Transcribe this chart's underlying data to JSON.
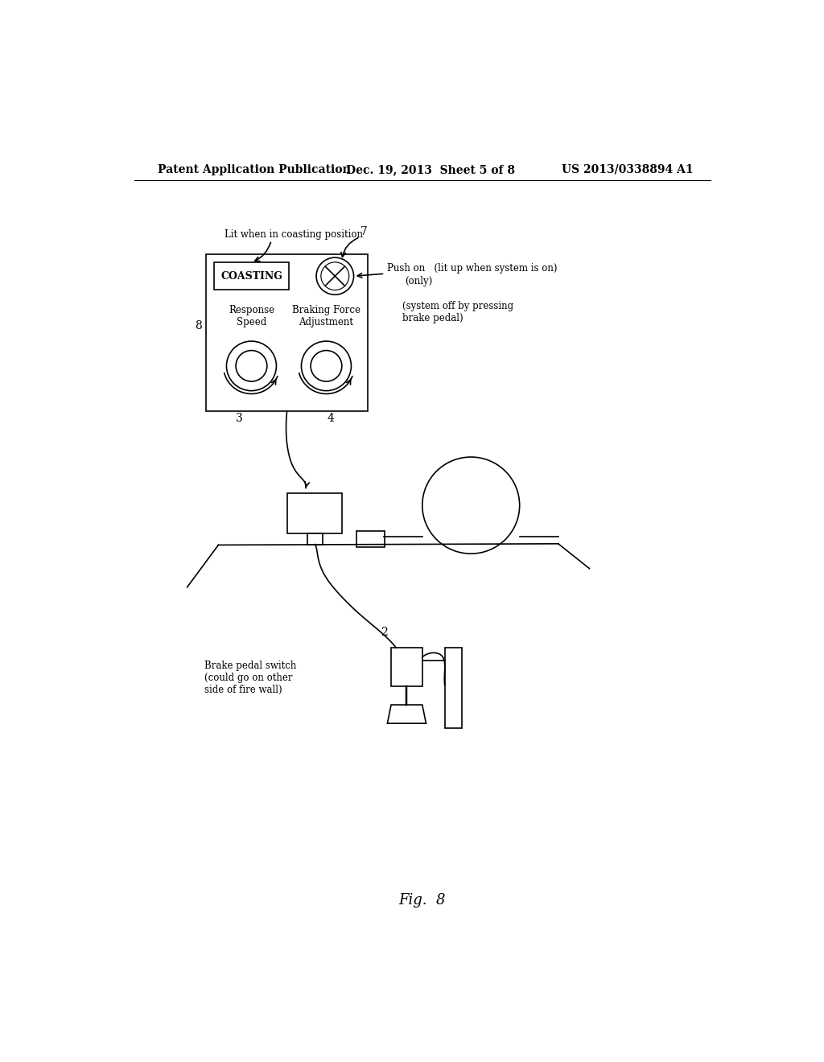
{
  "bg_color": "#ffffff",
  "header_left": "Patent Application Publication",
  "header_mid": "Dec. 19, 2013  Sheet 5 of 8",
  "header_right": "US 2013/0338894 A1",
  "fig_label": "Fig.  8",
  "panel_label": "8",
  "coasting_label": "COASTING",
  "knob1_label": "Response\nSpeed",
  "knob2_label": "Braking Force\nAdjustment",
  "led_label": "7",
  "label3": "3",
  "label4": "4",
  "label2": "2",
  "annotation_coasting": "Lit when in coasting position",
  "annotation_pushon_a": "Push on   (lit up when system is on)",
  "annotation_pushon_b": "(only)",
  "annotation_sysoff": "(system off by pressing\nbrake pedal)",
  "annotation_brake": "Brake pedal switch\n(could go on other\nside of fire wall)"
}
